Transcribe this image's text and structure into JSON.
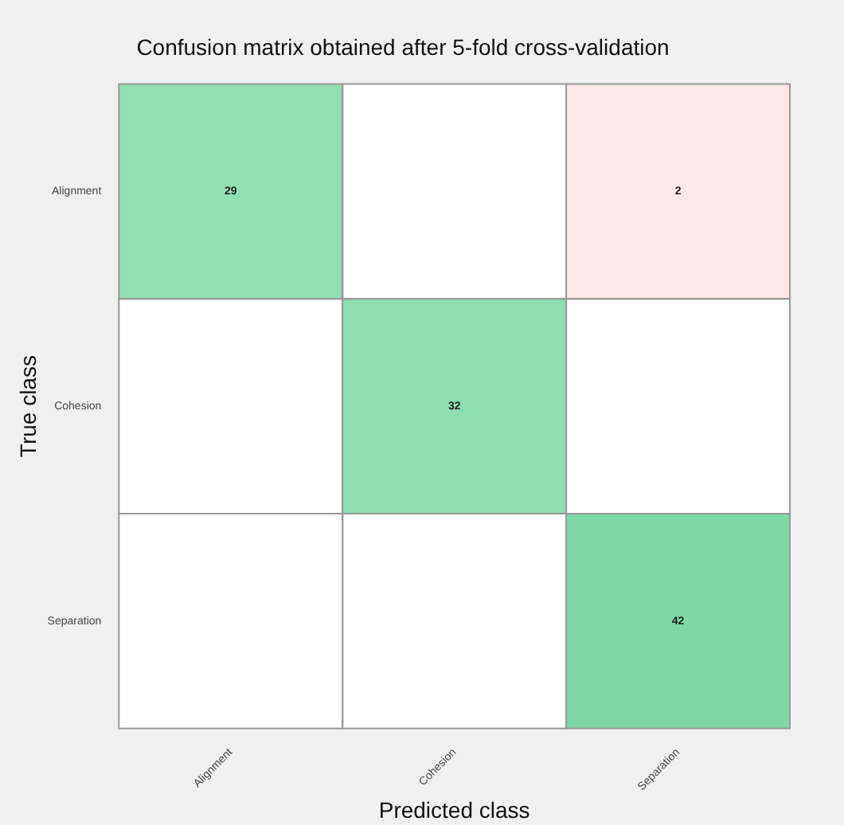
{
  "chart_data": {
    "type": "heatmap",
    "title": "Confusion matrix obtained after 5-fold cross-validation",
    "xlabel": "Predicted class",
    "data_labels": true,
    "ylabel": "True class",
    "categories": [
      "Alignment",
      "Cohesion",
      "Separation"
    ],
    "y_categories": [
      "Alignment",
      "Cohesion",
      "Separation"
    ],
    "cells": [
      [
        29,
        null,
        2
      ],
      [
        null,
        32,
        null
      ],
      [
        null,
        null,
        42
      ]
    ]
  }
}
